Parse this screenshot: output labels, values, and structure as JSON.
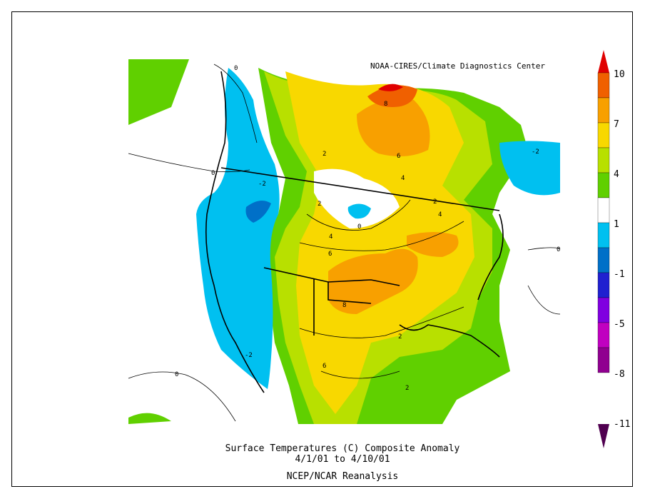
{
  "map": {
    "credit": "NOAA-CIRES/Climate Diagnostics Center",
    "caption_line1": "Surface Temperatures (C)   Composite Anomaly",
    "caption_line2": "4/1/01  to 4/10/01",
    "caption_line3": "NCEP/NCAR Reanalysis",
    "contour_labels": [
      "0",
      "0",
      "0",
      "0",
      "0",
      "-2",
      "-2",
      "-2",
      "2",
      "2",
      "2",
      "2",
      "4",
      "4",
      "4",
      "6",
      "6",
      "6",
      "8",
      "8",
      "2"
    ]
  },
  "colorbar": {
    "labels": [
      "10",
      "7",
      "4",
      "1",
      "-1",
      "-5",
      "-8",
      "-11"
    ],
    "colors": [
      "#e00000",
      "#f06000",
      "#f8a000",
      "#f8d800",
      "#b8e000",
      "#60d000",
      "#ffffff",
      "#00c0f0",
      "#0070c8",
      "#2020d0",
      "#8000e0",
      "#c000c0",
      "#900090",
      "#500050"
    ]
  }
}
